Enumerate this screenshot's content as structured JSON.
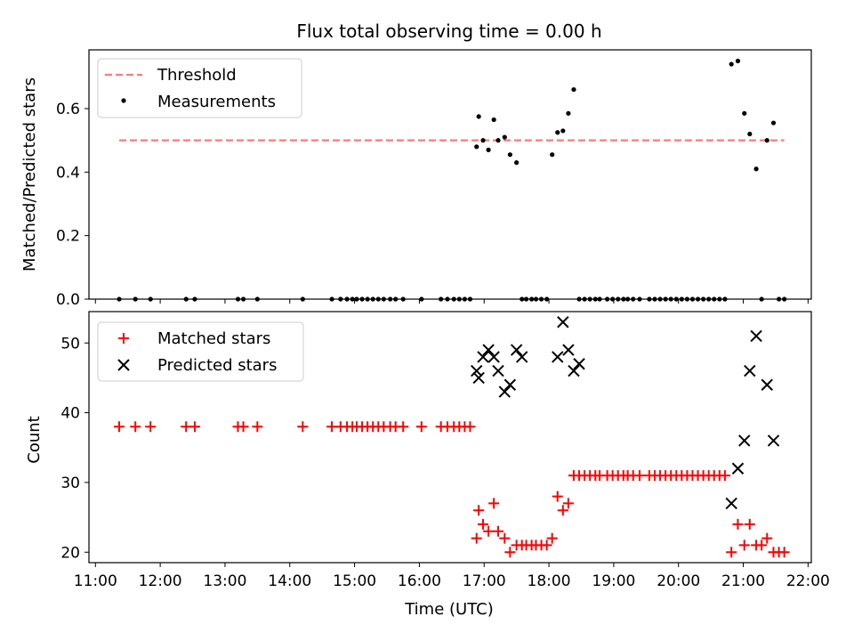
{
  "figure": {
    "title": "Flux total observing time = 0.00 h"
  },
  "chart_data": [
    {
      "type": "scatter",
      "panel": "top",
      "ylabel": "Matched/Predicted stars",
      "xlim": [
        "10:54",
        "22:03"
      ],
      "ylim": [
        0,
        0.785
      ],
      "yticks": [
        0.0,
        0.2,
        0.4,
        0.6
      ],
      "ytick_labels": [
        "0.0",
        "0.2",
        "0.4",
        "0.6"
      ],
      "legend_position": "upper-left",
      "grid": false,
      "series": [
        {
          "name": "Threshold",
          "kind": "dashed-line",
          "color": "#ff7a7a",
          "x": [
            "11:22",
            "21:38"
          ],
          "y": [
            0.5,
            0.5
          ]
        },
        {
          "name": "Measurements",
          "kind": "dots",
          "color": "#000000",
          "x": [
            "11:22",
            "11:37",
            "11:51",
            "12:24",
            "12:32",
            "13:12",
            "13:17",
            "13:30",
            "14:12",
            "14:39",
            "14:47",
            "14:53",
            "14:58",
            "15:02",
            "15:07",
            "15:12",
            "15:17",
            "15:22",
            "15:27",
            "15:33",
            "15:38",
            "15:45",
            "16:02",
            "16:20",
            "16:26",
            "16:32",
            "16:37",
            "16:42",
            "16:47",
            "16:53",
            "16:55",
            "16:59",
            "17:04",
            "17:09",
            "17:13",
            "17:19",
            "17:24",
            "17:30",
            "17:35",
            "17:39",
            "17:44",
            "17:48",
            "17:53",
            "17:58",
            "18:03",
            "18:08",
            "18:13",
            "18:18",
            "18:23",
            "18:28",
            "18:33",
            "18:38",
            "18:43",
            "18:47",
            "18:54",
            "18:59",
            "19:04",
            "19:09",
            "19:13",
            "19:18",
            "19:24",
            "19:33",
            "19:38",
            "19:43",
            "19:48",
            "19:53",
            "19:58",
            "20:03",
            "20:08",
            "20:13",
            "20:18",
            "20:23",
            "20:28",
            "20:33",
            "20:38",
            "20:43",
            "20:49",
            "20:55",
            "21:01",
            "21:06",
            "21:12",
            "21:17",
            "21:22",
            "21:28",
            "21:33",
            "21:38"
          ],
          "y": [
            0,
            0,
            0,
            0,
            0,
            0,
            0,
            0,
            0,
            0,
            0,
            0,
            0,
            0,
            0,
            0,
            0,
            0,
            0,
            0,
            0,
            0,
            0,
            0,
            0,
            0,
            0,
            0,
            0,
            0.48,
            0.575,
            0.5,
            0.47,
            0.565,
            0.5,
            0.51,
            0.455,
            0.43,
            0,
            0,
            0,
            0,
            0,
            0,
            0.455,
            0.525,
            0.53,
            0.585,
            0.66,
            0,
            0,
            0,
            0,
            0,
            0,
            0,
            0,
            0,
            0,
            0,
            0,
            0,
            0,
            0,
            0,
            0,
            0,
            0,
            0,
            0,
            0,
            0,
            0,
            0,
            0,
            0,
            0.74,
            0.75,
            0.585,
            0.52,
            0.41,
            0,
            0.5,
            0.555,
            0,
            0
          ]
        }
      ]
    },
    {
      "type": "scatter",
      "panel": "bottom",
      "xlabel": "Time (UTC)",
      "ylabel": "Count",
      "xlim": [
        "10:54",
        "22:03"
      ],
      "ylim": [
        18.5,
        54.5
      ],
      "xticks": [
        "11:00",
        "12:00",
        "13:00",
        "14:00",
        "15:00",
        "16:00",
        "17:00",
        "18:00",
        "19:00",
        "20:00",
        "21:00",
        "22:00"
      ],
      "yticks": [
        20,
        30,
        40,
        50
      ],
      "ytick_labels": [
        "20",
        "30",
        "40",
        "50"
      ],
      "legend_position": "upper-left",
      "grid": false,
      "series": [
        {
          "name": "Matched stars",
          "marker": "plus",
          "color": "#ff0000",
          "x": [
            "11:22",
            "11:37",
            "11:51",
            "12:24",
            "12:32",
            "13:12",
            "13:17",
            "13:30",
            "14:12",
            "14:39",
            "14:47",
            "14:53",
            "14:58",
            "15:02",
            "15:07",
            "15:12",
            "15:17",
            "15:22",
            "15:27",
            "15:33",
            "15:38",
            "15:45",
            "16:02",
            "16:20",
            "16:26",
            "16:32",
            "16:37",
            "16:42",
            "16:47",
            "16:53",
            "16:55",
            "16:59",
            "17:04",
            "17:09",
            "17:13",
            "17:19",
            "17:24",
            "17:30",
            "17:35",
            "17:39",
            "17:44",
            "17:48",
            "17:53",
            "17:58",
            "18:03",
            "18:08",
            "18:13",
            "18:18",
            "18:23",
            "18:28",
            "18:33",
            "18:38",
            "18:43",
            "18:47",
            "18:54",
            "18:59",
            "19:04",
            "19:09",
            "19:13",
            "19:18",
            "19:24",
            "19:33",
            "19:38",
            "19:43",
            "19:48",
            "19:53",
            "19:58",
            "20:03",
            "20:08",
            "20:13",
            "20:18",
            "20:23",
            "20:28",
            "20:33",
            "20:38",
            "20:43",
            "20:49",
            "20:55",
            "21:01",
            "21:06",
            "21:12",
            "21:17",
            "21:22",
            "21:28",
            "21:33",
            "21:38"
          ],
          "y": [
            38,
            38,
            38,
            38,
            38,
            38,
            38,
            38,
            38,
            38,
            38,
            38,
            38,
            38,
            38,
            38,
            38,
            38,
            38,
            38,
            38,
            38,
            38,
            38,
            38,
            38,
            38,
            38,
            38,
            22,
            26,
            24,
            23,
            27,
            23,
            22,
            20,
            21,
            21,
            21,
            21,
            21,
            21,
            21,
            22,
            28,
            26,
            27,
            31,
            31,
            31,
            31,
            31,
            31,
            31,
            31,
            31,
            31,
            31,
            31,
            31,
            31,
            31,
            31,
            31,
            31,
            31,
            31,
            31,
            31,
            31,
            31,
            31,
            31,
            31,
            31,
            20,
            24,
            21,
            24,
            21,
            21,
            22,
            20,
            20,
            20
          ]
        },
        {
          "name": "Predicted stars",
          "marker": "x",
          "color": "#000000",
          "x": [
            "16:53",
            "16:55",
            "16:59",
            "17:04",
            "17:09",
            "17:13",
            "17:19",
            "17:24",
            "17:30",
            "17:35",
            "18:08",
            "18:13",
            "18:18",
            "18:23",
            "18:28",
            "20:49",
            "20:55",
            "21:01",
            "21:06",
            "21:12",
            "21:22",
            "21:28"
          ],
          "y": [
            46,
            45,
            48,
            49,
            48,
            46,
            43,
            44,
            49,
            48,
            48,
            53,
            49,
            46,
            47,
            27,
            32,
            36,
            46,
            51,
            44,
            36
          ]
        }
      ]
    }
  ]
}
